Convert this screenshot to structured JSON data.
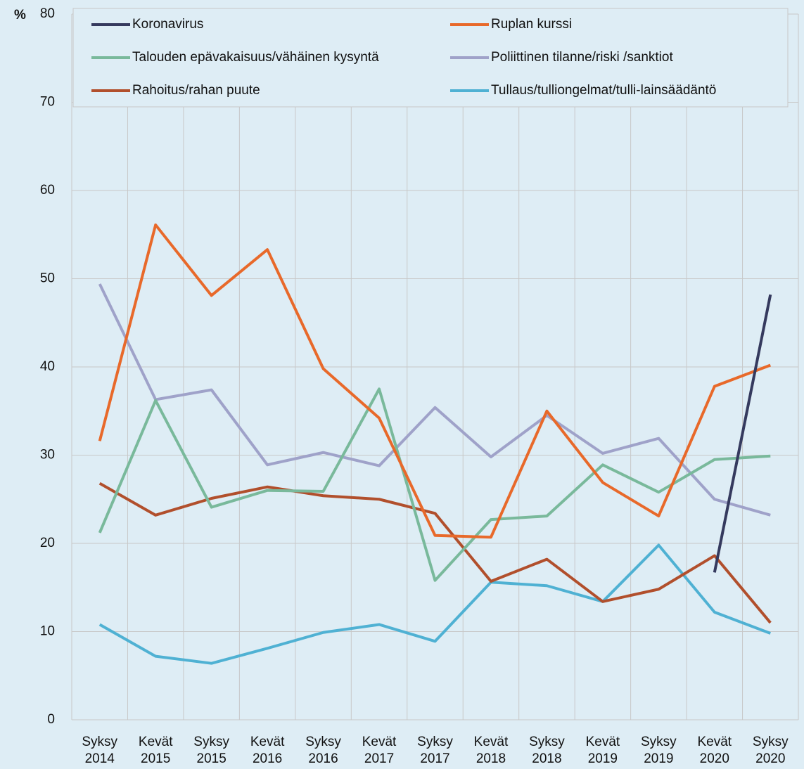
{
  "chart_data": {
    "type": "line",
    "y_label": "%",
    "categories": [
      "Syksy 2014",
      "Kevät 2015",
      "Syksy 2015",
      "Kevät 2016",
      "Syksy 2016",
      "Kevät 2017",
      "Syksy 2017",
      "Kevät 2018",
      "Syksy 2018",
      "Kevät 2019",
      "Syksy 2019",
      "Kevät 2020",
      "Syksy 2020"
    ],
    "series": [
      {
        "name": "Koronavirus",
        "color": "#353a5e",
        "values": [
          null,
          null,
          null,
          null,
          null,
          null,
          null,
          null,
          null,
          null,
          null,
          16.7,
          48.2
        ]
      },
      {
        "name": "Ruplan kurssi",
        "color": "#e8692a",
        "values": [
          31.6,
          56.1,
          48.1,
          53.3,
          39.8,
          34.2,
          20.9,
          20.7,
          35.0,
          26.9,
          23.1,
          37.8,
          40.2
        ]
      },
      {
        "name": "Talouden epävakaisuus/vähäinen kysyntä",
        "color": "#79b99b",
        "values": [
          21.2,
          36.2,
          24.1,
          26.0,
          25.9,
          37.5,
          15.8,
          22.7,
          23.1,
          28.9,
          25.8,
          29.5,
          29.9
        ]
      },
      {
        "name": "Poliittinen tilanne/riski /sanktiot",
        "color": "#9fa2c9",
        "values": [
          49.4,
          36.3,
          37.4,
          28.9,
          30.3,
          28.8,
          35.4,
          29.8,
          34.5,
          30.2,
          31.9,
          25.0,
          23.2
        ]
      },
      {
        "name": "Rahoitus/rahan puute",
        "color": "#b14f2c",
        "values": [
          26.8,
          23.2,
          25.1,
          26.4,
          25.4,
          25.0,
          23.4,
          15.7,
          18.2,
          13.4,
          14.8,
          18.6,
          11.0
        ]
      },
      {
        "name": "Tullaus/tulliongelmat/tulli-lainsäädäntö",
        "color": "#4fb1d3",
        "values": [
          10.8,
          7.2,
          6.4,
          8.1,
          9.9,
          10.8,
          8.9,
          15.6,
          15.2,
          13.4,
          19.8,
          12.2,
          9.8
        ]
      }
    ],
    "ylim": [
      0,
      80
    ],
    "yticks": [
      0,
      10,
      20,
      30,
      40,
      50,
      60,
      70,
      80
    ],
    "grid": true,
    "legend": "top"
  }
}
